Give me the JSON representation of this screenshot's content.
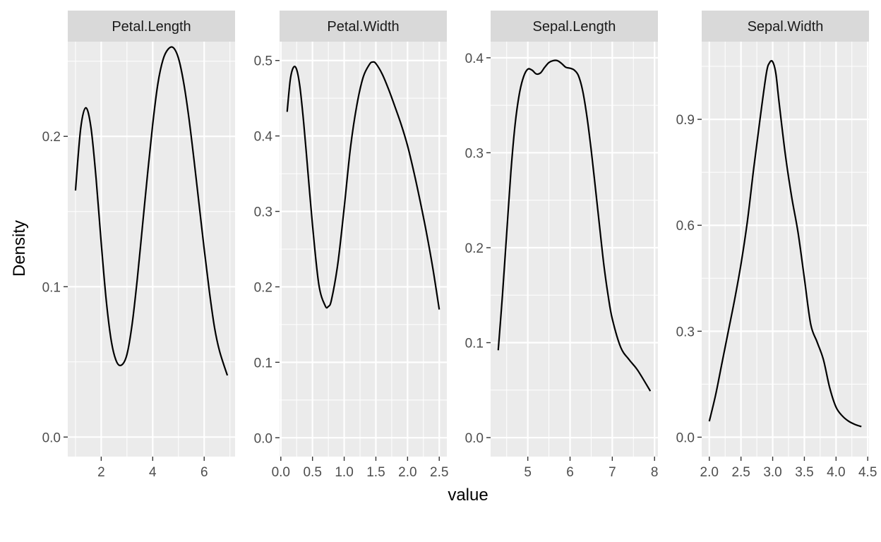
{
  "chart_data": {
    "type": "line",
    "facet_by": "variable",
    "xlabel": "value",
    "ylabel": "Density",
    "grid": true,
    "scales": "free",
    "colors": {
      "panel_bg": "#EBEBEB",
      "grid": "#FFFFFF",
      "strip_bg": "#D9D9D9",
      "line": "#000000",
      "tick_text": "#4D4D4D"
    },
    "panels": [
      {
        "name": "Petal.Length",
        "xlim": [
          0.7,
          7.2
        ],
        "ylim": [
          -0.013,
          0.263
        ],
        "xticks": [
          2,
          4,
          6
        ],
        "xtick_labels": [
          "2",
          "4",
          "6"
        ],
        "yticks": [
          0.0,
          0.1,
          0.2
        ],
        "ytick_labels": [
          "0.0",
          "0.1",
          "0.2"
        ],
        "x": [
          1.0,
          1.2,
          1.4,
          1.6,
          1.8,
          2.0,
          2.2,
          2.4,
          2.6,
          2.8,
          3.0,
          3.2,
          3.4,
          3.6,
          3.8,
          4.0,
          4.2,
          4.4,
          4.6,
          4.8,
          5.0,
          5.2,
          5.4,
          5.6,
          5.8,
          6.0,
          6.2,
          6.4,
          6.6,
          6.9
        ],
        "y": [
          0.164,
          0.205,
          0.219,
          0.206,
          0.172,
          0.129,
          0.09,
          0.063,
          0.05,
          0.048,
          0.055,
          0.075,
          0.105,
          0.14,
          0.175,
          0.208,
          0.235,
          0.251,
          0.258,
          0.259,
          0.252,
          0.236,
          0.213,
          0.185,
          0.155,
          0.125,
          0.097,
          0.073,
          0.057,
          0.041
        ]
      },
      {
        "name": "Petal.Width",
        "xlim": [
          -0.02,
          2.62
        ],
        "ylim": [
          -0.025,
          0.525
        ],
        "xticks": [
          0.0,
          0.5,
          1.0,
          1.5,
          2.0,
          2.5
        ],
        "xtick_labels": [
          "0.0",
          "0.5",
          "1.0",
          "1.5",
          "2.0",
          "2.5"
        ],
        "yticks": [
          0.0,
          0.1,
          0.2,
          0.3,
          0.4,
          0.5
        ],
        "ytick_labels": [
          "0.0",
          "0.1",
          "0.2",
          "0.3",
          "0.4",
          "0.5"
        ],
        "x": [
          0.1,
          0.15,
          0.2,
          0.25,
          0.3,
          0.35,
          0.4,
          0.5,
          0.6,
          0.7,
          0.75,
          0.8,
          0.9,
          1.0,
          1.1,
          1.2,
          1.3,
          1.4,
          1.45,
          1.5,
          1.6,
          1.7,
          1.8,
          1.9,
          2.0,
          2.1,
          2.2,
          2.3,
          2.4,
          2.5
        ],
        "y": [
          0.432,
          0.475,
          0.491,
          0.488,
          0.466,
          0.427,
          0.38,
          0.282,
          0.203,
          0.175,
          0.174,
          0.183,
          0.231,
          0.305,
          0.385,
          0.441,
          0.478,
          0.495,
          0.498,
          0.496,
          0.482,
          0.462,
          0.439,
          0.415,
          0.387,
          0.352,
          0.313,
          0.271,
          0.224,
          0.17
        ]
      },
      {
        "name": "Sepal.Length",
        "xlim": [
          4.12,
          8.08
        ],
        "ylim": [
          -0.02,
          0.417
        ],
        "xticks": [
          5,
          6,
          7,
          8
        ],
        "xtick_labels": [
          "5",
          "6",
          "7",
          "8"
        ],
        "yticks": [
          0.0,
          0.1,
          0.2,
          0.3,
          0.4
        ],
        "ytick_labels": [
          "0.0",
          "0.1",
          "0.2",
          "0.3",
          "0.4"
        ],
        "x": [
          4.3,
          4.4,
          4.5,
          4.6,
          4.7,
          4.8,
          4.9,
          5.0,
          5.1,
          5.2,
          5.3,
          5.4,
          5.5,
          5.6,
          5.7,
          5.8,
          5.9,
          6.0,
          6.1,
          6.2,
          6.3,
          6.4,
          6.5,
          6.6,
          6.7,
          6.8,
          6.9,
          7.0,
          7.2,
          7.4,
          7.6,
          7.9
        ],
        "y": [
          0.092,
          0.15,
          0.215,
          0.28,
          0.33,
          0.362,
          0.38,
          0.388,
          0.387,
          0.383,
          0.384,
          0.39,
          0.395,
          0.397,
          0.397,
          0.394,
          0.39,
          0.389,
          0.387,
          0.381,
          0.365,
          0.338,
          0.303,
          0.263,
          0.222,
          0.182,
          0.15,
          0.125,
          0.095,
          0.082,
          0.071,
          0.049
        ]
      },
      {
        "name": "Sepal.Width",
        "xlim": [
          1.88,
          4.52
        ],
        "ylim": [
          -0.055,
          1.12
        ],
        "xticks": [
          2.0,
          2.5,
          3.0,
          3.5,
          4.0,
          4.5
        ],
        "xtick_labels": [
          "2.0",
          "2.5",
          "3.0",
          "3.5",
          "4.0",
          "4.5"
        ],
        "yticks": [
          0.0,
          0.3,
          0.6,
          0.9
        ],
        "ytick_labels": [
          "0.0",
          "0.3",
          "0.6",
          "0.9"
        ],
        "x": [
          2.0,
          2.1,
          2.2,
          2.3,
          2.4,
          2.5,
          2.6,
          2.7,
          2.8,
          2.9,
          2.95,
          3.0,
          3.05,
          3.1,
          3.2,
          3.3,
          3.4,
          3.5,
          3.6,
          3.7,
          3.8,
          3.9,
          4.0,
          4.1,
          4.2,
          4.3,
          4.4
        ],
        "y": [
          0.045,
          0.12,
          0.21,
          0.3,
          0.39,
          0.49,
          0.61,
          0.76,
          0.9,
          1.03,
          1.06,
          1.063,
          1.03,
          0.95,
          0.8,
          0.68,
          0.58,
          0.45,
          0.32,
          0.27,
          0.22,
          0.14,
          0.085,
          0.06,
          0.045,
          0.036,
          0.03
        ]
      }
    ]
  }
}
